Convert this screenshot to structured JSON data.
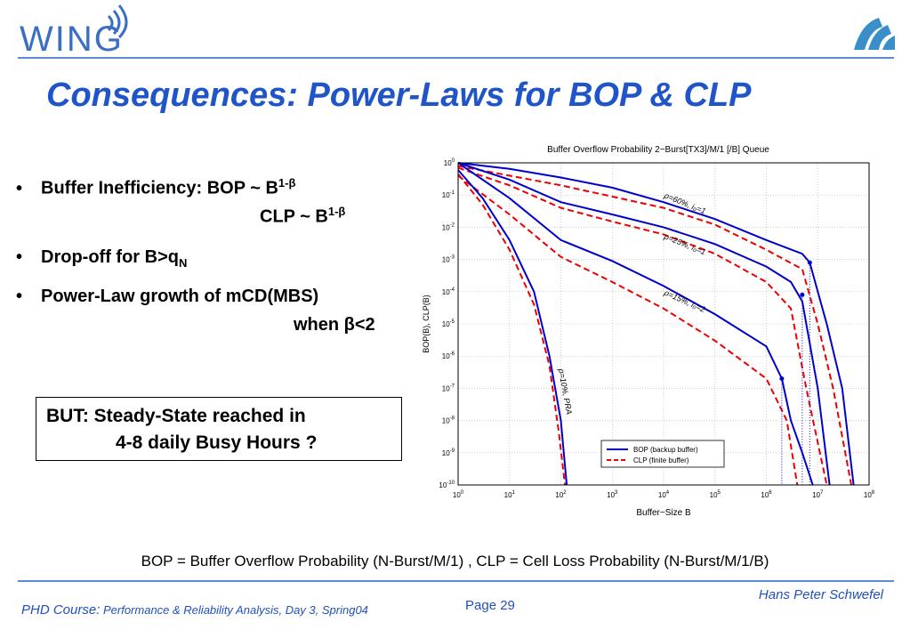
{
  "header": {
    "logo_text": "WING",
    "title": "Consequences:  Power-Laws for BOP & CLP"
  },
  "bullets": {
    "b1_text": "Buffer Inefficiency: BOP ~ B",
    "b1_sup": "1-β",
    "b1b_text": "CLP ~ B",
    "b1b_sup": "1-β",
    "b2_text": "Drop-off for B>q",
    "b2_sub": "N",
    "b3_text": "Power-Law growth of  mCD(MBS)",
    "b3b_text": "when β<2",
    "marker": "•"
  },
  "callout": {
    "line1": "BUT:  Steady-State reached in",
    "line2": "4-8 daily Busy Hours ?"
  },
  "footnote": "BOP = Buffer Overflow Probability (N-Burst/M/1) ,  CLP = Cell Loss Probability (N-Burst/M/1/B)",
  "footer": {
    "author": "Hans Peter Schwefel",
    "page": "Page 29",
    "course_label": "PHD Course:",
    "course_detail": "Performance & Reliability Analysis, Day 3, Spring04"
  },
  "colors": {
    "accent": "#1f55c8",
    "rule": "#5b8ad6",
    "bop": "#0000cc",
    "clp": "#ee0000"
  },
  "chart_data": {
    "type": "line",
    "title": "Buffer Overflow Probability 2−Burst[TX3]/M/1 [/B] Queue",
    "xlabel": "Buffer−Size B",
    "ylabel": "BOP(B), CLP(B)",
    "xscale": "log",
    "yscale": "log",
    "xlim": [
      1,
      100000000
    ],
    "ylim": [
      1e-10,
      1
    ],
    "x_ticks": [
      "10^0",
      "10^1",
      "10^2",
      "10^3",
      "10^4",
      "10^5",
      "10^6",
      "10^7",
      "10^8"
    ],
    "y_ticks": [
      "10^0",
      "10^-1",
      "10^-2",
      "10^-3",
      "10^-4",
      "10^-5",
      "10^-6",
      "10^-7",
      "10^-8",
      "10^-9",
      "10^-10"
    ],
    "grid": true,
    "legend_position": "bottom-right",
    "legend": [
      "BOP (backup buffer)",
      "CLP (finite buffer)"
    ],
    "annotations": [
      "ρ=60%, i₀=1",
      "ρ=25%, i₀=1",
      "ρ=15%, i₀=2",
      "ρ=10%, PRA"
    ],
    "series": [
      {
        "name": "BOP (backup buffer)",
        "group": "ρ=60%, i₀=1",
        "style": "solid",
        "x": [
          1,
          10,
          100,
          1000,
          10000,
          100000,
          1000000,
          5000000,
          7000000,
          15000000,
          30000000,
          50000000
        ],
        "y": [
          1,
          0.65,
          0.35,
          0.17,
          0.06,
          0.018,
          0.004,
          0.0015,
          0.0008,
          1e-05,
          1e-07,
          1e-10
        ]
      },
      {
        "name": "CLP (finite buffer)",
        "group": "ρ=60%, i₀=1",
        "style": "dashed",
        "x": [
          1,
          10,
          100,
          1000,
          10000,
          100000,
          1000000,
          5000000,
          10000000,
          20000000,
          45000000
        ],
        "y": [
          0.8,
          0.4,
          0.2,
          0.09,
          0.04,
          0.012,
          0.002,
          0.0005,
          1e-05,
          1e-07,
          1e-10
        ]
      },
      {
        "name": "BOP (backup buffer)",
        "group": "ρ=25%, i₀=1",
        "style": "solid",
        "x": [
          1,
          10,
          100,
          1000,
          10000,
          100000,
          1000000,
          3000000,
          5000000,
          10000000,
          17000000
        ],
        "y": [
          1,
          0.3,
          0.06,
          0.025,
          0.01,
          0.003,
          0.0006,
          0.0002,
          5e-05,
          1e-07,
          1e-10
        ]
      },
      {
        "name": "CLP (finite buffer)",
        "group": "ρ=25%, i₀=1",
        "style": "dashed",
        "x": [
          1,
          10,
          100,
          1000,
          10000,
          100000,
          1000000,
          3000000,
          6000000,
          15000000
        ],
        "y": [
          0.7,
          0.2,
          0.04,
          0.015,
          0.006,
          0.0015,
          0.0002,
          3e-05,
          1e-07,
          1e-10
        ]
      },
      {
        "name": "BOP (backup buffer)",
        "group": "ρ=15%, i₀=2",
        "style": "solid",
        "x": [
          1,
          10,
          100,
          1000,
          10000,
          100000,
          1000000,
          2000000,
          3000000,
          5000000,
          8000000
        ],
        "y": [
          1,
          0.08,
          0.004,
          0.0009,
          0.00015,
          2e-05,
          2e-06,
          2e-07,
          1e-08,
          1e-09,
          1e-10
        ]
      },
      {
        "name": "CLP (finite buffer)",
        "group": "ρ=15%, i₀=2",
        "style": "dashed",
        "x": [
          1,
          10,
          100,
          1000,
          10000,
          100000,
          1000000,
          2500000,
          4000000
        ],
        "y": [
          0.4,
          0.025,
          0.0012,
          0.0002,
          3e-05,
          3e-06,
          2e-07,
          1e-08,
          1e-10
        ]
      },
      {
        "name": "BOP (backup buffer)",
        "group": "ρ=10%, PRA",
        "style": "solid",
        "x": [
          1,
          3,
          10,
          30,
          60,
          100,
          130
        ],
        "y": [
          0.6,
          0.08,
          0.004,
          0.0001,
          1e-06,
          1e-08,
          1e-10
        ]
      },
      {
        "name": "CLP (finite buffer)",
        "group": "ρ=10%, PRA",
        "style": "dashed",
        "x": [
          1,
          3,
          10,
          30,
          60,
          90,
          120
        ],
        "y": [
          0.45,
          0.05,
          0.002,
          4e-05,
          5e-07,
          5e-09,
          1e-10
        ]
      }
    ],
    "markers": [
      {
        "x": 2000000,
        "y": 2e-07
      },
      {
        "x": 5000000,
        "y": 8e-05
      },
      {
        "x": 7000000,
        "y": 0.0008
      }
    ]
  }
}
